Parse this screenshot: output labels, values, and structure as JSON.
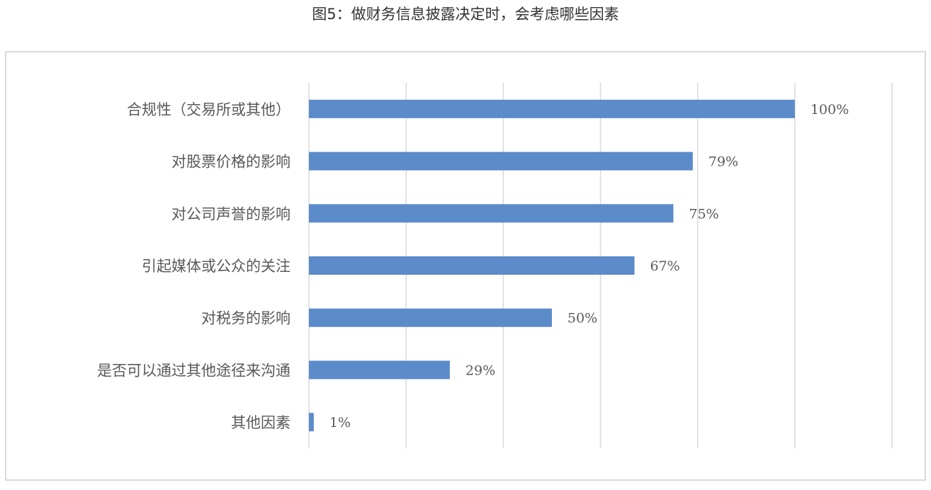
{
  "chart_data": {
    "type": "bar",
    "orientation": "horizontal",
    "title": "图5：做财务信息披露决定时，会考虑哪些因素",
    "categories": [
      "合规性（交易所或其他）",
      "对股票价格的影响",
      "对公司声誉的影响",
      "引起媒体或公众的关注",
      "对税务的影响",
      "是否可以通过其他途径来沟通",
      "其他因素"
    ],
    "values": [
      100,
      79,
      75,
      67,
      50,
      29,
      1
    ],
    "value_labels": [
      "100%",
      "79%",
      "75%",
      "67%",
      "50%",
      "29%",
      "1%"
    ],
    "xlim": [
      0,
      120
    ],
    "x_gridlines": [
      0,
      20,
      40,
      60,
      80,
      100,
      120
    ],
    "grid": true,
    "x_tick_labels_shown": false,
    "legend": "none",
    "colors": {
      "bar": "#5b8bc9",
      "grid": "#d9d9d9",
      "border": "#d9d9d9"
    }
  }
}
